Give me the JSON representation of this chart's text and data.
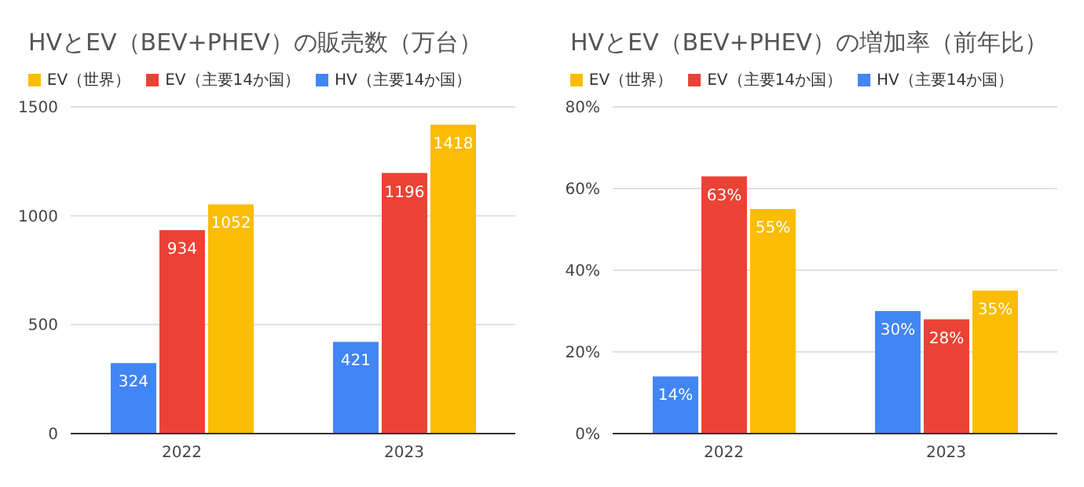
{
  "chart_data": [
    {
      "type": "bar",
      "title": "HVとEV（BEV+PHEV）の販売数（万台）",
      "categories": [
        "2022",
        "2023"
      ],
      "series": [
        {
          "name": "HV（主要14か国）",
          "color": "#4285f4",
          "values": [
            324,
            421
          ]
        },
        {
          "name": "EV（主要14か国）",
          "color": "#ea4335",
          "values": [
            934,
            1196
          ]
        },
        {
          "name": "EV（世界）",
          "color": "#fbbc04",
          "values": [
            1052,
            1418
          ]
        }
      ],
      "ylim": [
        0,
        1500
      ],
      "yticks": [
        0,
        500,
        1000,
        1500
      ],
      "grid": "y",
      "legend": "top",
      "data_labels": true
    },
    {
      "type": "bar",
      "title": "HVとEV（BEV+PHEV）の増加率（前年比）",
      "categories": [
        "2022",
        "2023"
      ],
      "series": [
        {
          "name": "HV（主要14か国）",
          "color": "#4285f4",
          "values": [
            14,
            30
          ],
          "value_labels": [
            "14%",
            "30%"
          ]
        },
        {
          "name": "EV（主要14か国）",
          "color": "#ea4335",
          "values": [
            63,
            28
          ],
          "value_labels": [
            "63%",
            "28%"
          ]
        },
        {
          "name": "EV（世界）",
          "color": "#fbbc04",
          "values": [
            55,
            35
          ],
          "value_labels": [
            "55%",
            "35%"
          ]
        }
      ],
      "ylim": [
        0,
        80
      ],
      "yticks": [
        {
          "value": 0,
          "label": "0%"
        },
        {
          "value": 20,
          "label": "20%"
        },
        {
          "value": 40,
          "label": "40%"
        },
        {
          "value": 60,
          "label": "60%"
        },
        {
          "value": 80,
          "label": "80%"
        }
      ],
      "grid": "y",
      "legend": "top"
    }
  ]
}
